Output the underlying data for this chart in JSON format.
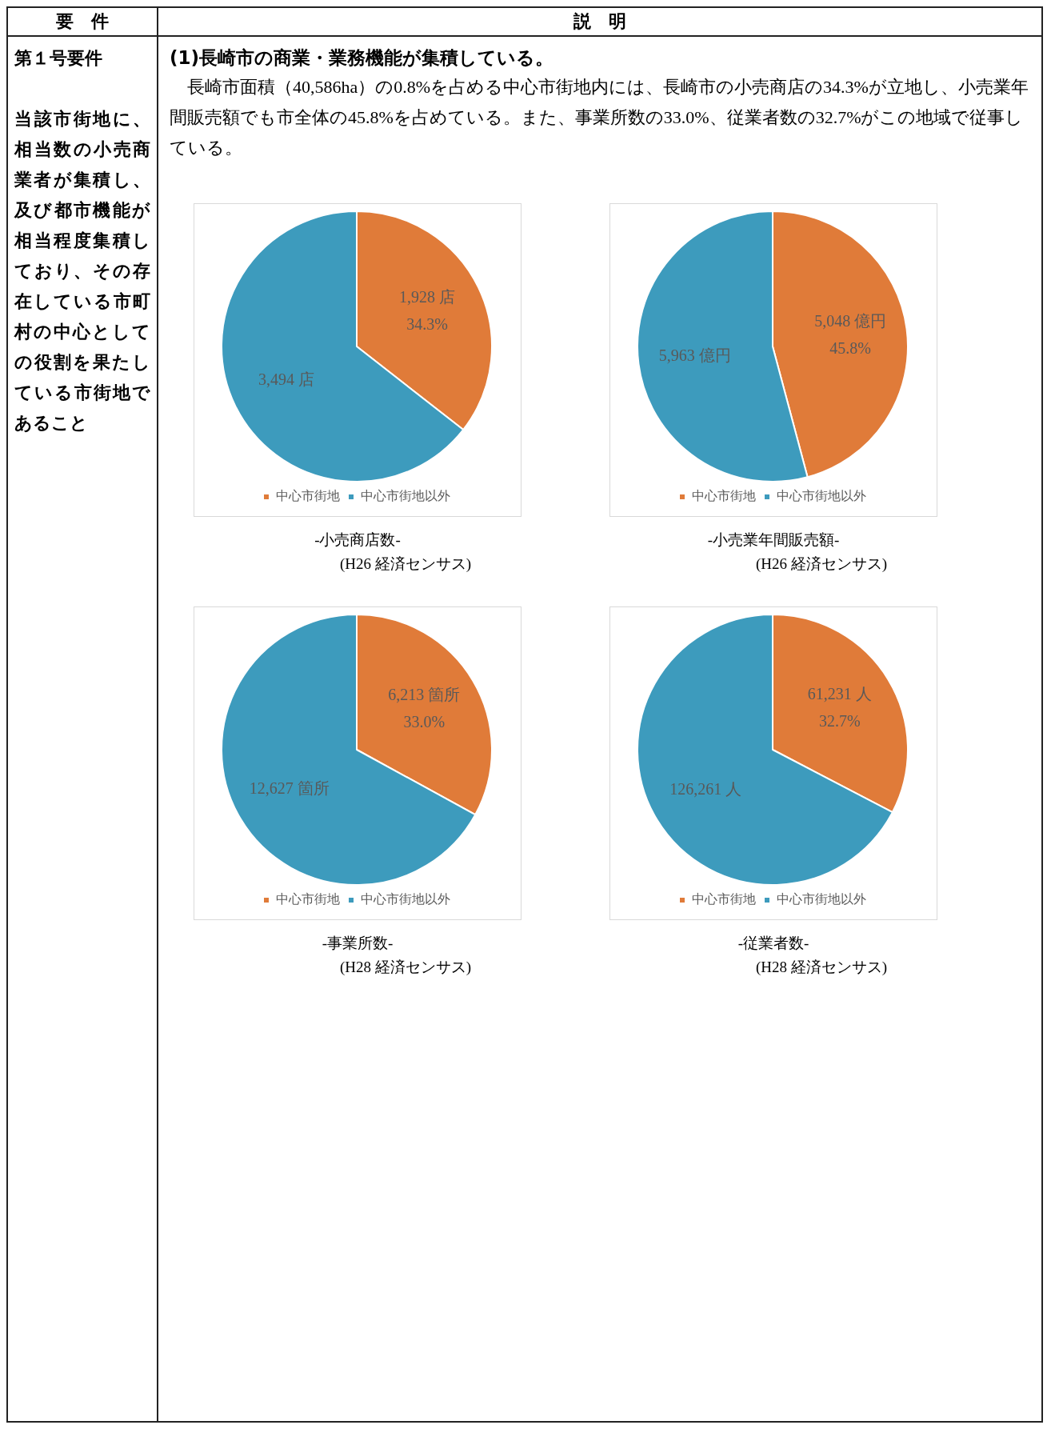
{
  "chart_data": [
    {
      "type": "other",
      "annotations": [
        "要　件",
        "説　明",
        "第１号要件",
        "当該市街地に、相当数の小売商業者が集積し、及び都市機能が相当程度集積しており、その存在している市町村の中心としての役割を果たしている市街地であること",
        "(1)長崎市の商業・業務機能が集積している。",
        "長崎市面積（40,586ha）の0.8%を占める中心市街地内には、長崎市の小売商店の34.3%が立地し、小売業年間販売額でも市全体の45.8%を占めている。また、事業所数の33.0%、従業者数の32.7%がこの地域で従事している。"
      ]
    },
    {
      "type": "pie",
      "title": "-小売商店数-",
      "subtitle": "(H26 経済センサス)",
      "categories": [
        "中心市街地",
        "中心市街地以外"
      ],
      "values": [
        1928,
        3494
      ],
      "colors": [
        "#e07b39",
        "#3d9bbd"
      ],
      "value_labels": [
        "1,928 店",
        "3,494 店"
      ],
      "annotations": [
        {
          "text": "34.3%",
          "x": "中心市街地"
        }
      ],
      "legend": "bottom"
    },
    {
      "type": "pie",
      "title": "-小売業年間販売額-",
      "subtitle": "(H26 経済センサス)",
      "categories": [
        "中心市街地",
        "中心市街地以外"
      ],
      "values": [
        5048,
        5963
      ],
      "colors": [
        "#e07b39",
        "#3d9bbd"
      ],
      "value_labels": [
        "5,048 億円",
        "5,963 億円"
      ],
      "annotations": [
        {
          "text": "45.8%",
          "x": "中心市街地"
        }
      ],
      "legend": "bottom"
    },
    {
      "type": "pie",
      "title": "-事業所数-",
      "subtitle": "(H28 経済センサス)",
      "categories": [
        "中心市街地",
        "中心市街地以外"
      ],
      "values": [
        6213,
        12627
      ],
      "colors": [
        "#e07b39",
        "#3d9bbd"
      ],
      "value_labels": [
        "6,213 箇所",
        "12,627 箇所"
      ],
      "annotations": [
        {
          "text": "33.0%",
          "x": "中心市街地"
        }
      ],
      "legend": "bottom"
    },
    {
      "type": "pie",
      "title": "-従業者数-",
      "subtitle": "(H28 経済センサス)",
      "categories": [
        "中心市街地",
        "中心市街地以外"
      ],
      "values": [
        61231,
        126261
      ],
      "colors": [
        "#e07b39",
        "#3d9bbd"
      ],
      "value_labels": [
        "61,231 人",
        "126,261 人"
      ],
      "annotations": [
        {
          "text": "32.7%",
          "x": "中心市街地"
        }
      ],
      "legend": "bottom"
    }
  ]
}
